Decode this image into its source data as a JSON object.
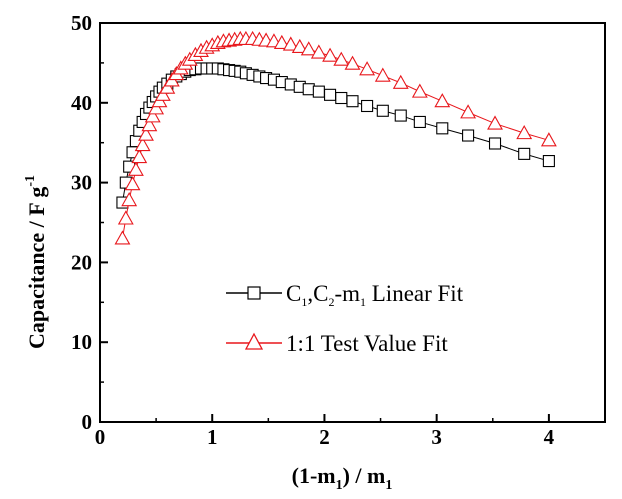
{
  "chart_data": {
    "type": "scatter",
    "title": "",
    "xlabel": {
      "parts": [
        "(1-m",
        "1",
        ") / m",
        "1"
      ]
    },
    "ylabel": {
      "parts": [
        "Capacitance / F g",
        "-1"
      ]
    },
    "xlim": [
      0,
      4.5
    ],
    "ylim": [
      0,
      50
    ],
    "xticks": [
      "0",
      "1",
      "2",
      "3",
      "4"
    ],
    "yticks": [
      "0",
      "10",
      "20",
      "30",
      "40",
      "50"
    ],
    "grid": false,
    "legend_position": "center-right",
    "series": [
      {
        "name": "C1,C2-m1 Linear Fit",
        "legend_parts": {
          "a": "C",
          "a_sub": "1",
          "b": ",C",
          "b_sub": "2",
          "c": "-m",
          "c_sub": "1",
          "d": " Linear Fit"
        },
        "color": "#000000",
        "marker": "square",
        "x": [
          0.2,
          0.23,
          0.26,
          0.29,
          0.32,
          0.35,
          0.38,
          0.41,
          0.44,
          0.47,
          0.5,
          0.53,
          0.56,
          0.6,
          0.64,
          0.68,
          0.72,
          0.76,
          0.8,
          0.85,
          0.9,
          0.95,
          1.0,
          1.05,
          1.1,
          1.15,
          1.2,
          1.25,
          1.3,
          1.36,
          1.42,
          1.48,
          1.55,
          1.62,
          1.7,
          1.78,
          1.86,
          1.95,
          2.05,
          2.15,
          2.25,
          2.38,
          2.52,
          2.68,
          2.85,
          3.05,
          3.28,
          3.52,
          3.78,
          4.0
        ],
        "y": [
          27.5,
          30.0,
          32.0,
          33.8,
          35.2,
          36.5,
          37.6,
          38.6,
          39.4,
          40.1,
          40.8,
          41.4,
          41.9,
          42.4,
          42.9,
          43.3,
          43.6,
          43.9,
          44.1,
          44.2,
          44.3,
          44.3,
          44.3,
          44.3,
          44.2,
          44.1,
          44.0,
          43.9,
          43.7,
          43.5,
          43.3,
          43.1,
          42.9,
          42.6,
          42.3,
          42.0,
          41.7,
          41.4,
          41.0,
          40.6,
          40.2,
          39.6,
          39.0,
          38.4,
          37.6,
          36.8,
          35.9,
          34.9,
          33.6,
          32.7
        ]
      },
      {
        "name": "1:1 Test Value Fit",
        "legend_parts": {
          "a": "1:1 Test Value Fit"
        },
        "color": "#e8171c",
        "marker": "triangle",
        "x": [
          0.2,
          0.23,
          0.26,
          0.29,
          0.32,
          0.35,
          0.38,
          0.41,
          0.44,
          0.47,
          0.5,
          0.53,
          0.56,
          0.6,
          0.64,
          0.68,
          0.72,
          0.76,
          0.8,
          0.85,
          0.9,
          0.95,
          1.0,
          1.05,
          1.1,
          1.15,
          1.2,
          1.25,
          1.3,
          1.36,
          1.42,
          1.48,
          1.55,
          1.62,
          1.7,
          1.78,
          1.86,
          1.95,
          2.05,
          2.15,
          2.25,
          2.38,
          2.52,
          2.68,
          2.85,
          3.05,
          3.28,
          3.52,
          3.78,
          4.0
        ],
        "y": [
          23.0,
          25.5,
          27.8,
          29.8,
          31.6,
          33.2,
          34.7,
          36.0,
          37.2,
          38.3,
          39.3,
          40.2,
          41.0,
          41.9,
          42.8,
          43.6,
          44.3,
          44.9,
          45.4,
          46.0,
          46.5,
          46.9,
          47.2,
          47.5,
          47.7,
          47.8,
          47.9,
          48.0,
          48.0,
          48.0,
          47.9,
          47.8,
          47.7,
          47.5,
          47.3,
          47.0,
          46.7,
          46.3,
          45.9,
          45.4,
          44.9,
          44.2,
          43.4,
          42.5,
          41.4,
          40.2,
          38.8,
          37.4,
          36.2,
          35.3
        ]
      }
    ]
  }
}
